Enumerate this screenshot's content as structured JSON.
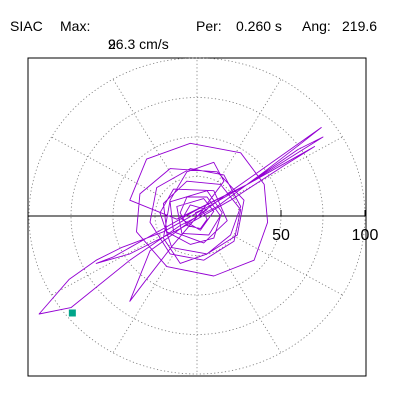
{
  "header": {
    "station": "SIAC",
    "max_label": "Max:",
    "max_value": "96.3 cm/s",
    "max_unit_exp": "2",
    "per_label": "Per:",
    "per_value": "0.260 s",
    "ang_label": "Ang:",
    "ang_value": "219.6"
  },
  "chart_data": {
    "type": "polar",
    "title": "SIAC  Max: 96.3 cm/s2  Per: 0.260 s  Ang: 219.6",
    "radial_ticks": [
      50,
      100
    ],
    "radial_range": [
      0,
      100
    ],
    "ring_spacing": 25,
    "spoke_step_deg": 30,
    "grid": true,
    "series_color": "#9400d3",
    "peak_marker_color": "#00a58a",
    "peak": {
      "r": 96.3,
      "angle": 219.6
    },
    "particle_motion": [
      [
        0,
        0
      ],
      [
        6,
        4
      ],
      [
        -4,
        7
      ],
      [
        -9,
        -2
      ],
      [
        2,
        -9
      ],
      [
        10,
        3
      ],
      [
        4,
        11
      ],
      [
        -12,
        6
      ],
      [
        -9,
        -11
      ],
      [
        7,
        -12
      ],
      [
        15,
        2
      ],
      [
        6,
        16
      ],
      [
        -16,
        9
      ],
      [
        -14,
        -10
      ],
      [
        4,
        -17
      ],
      [
        18,
        -3
      ],
      [
        10,
        16
      ],
      [
        -14,
        17
      ],
      [
        -22,
        2
      ],
      [
        -15,
        -20
      ],
      [
        6,
        -24
      ],
      [
        24,
        -12
      ],
      [
        28,
        10
      ],
      [
        12,
        28
      ],
      [
        -16,
        30
      ],
      [
        -34,
        14
      ],
      [
        -36,
        -10
      ],
      [
        -18,
        -32
      ],
      [
        10,
        -38
      ],
      [
        34,
        -28
      ],
      [
        42,
        -4
      ],
      [
        40,
        20
      ],
      [
        26,
        40
      ],
      [
        -4,
        46
      ],
      [
        -30,
        36
      ],
      [
        -40,
        10
      ],
      [
        -12,
        -2
      ],
      [
        30,
        20
      ],
      [
        60,
        40
      ],
      [
        75,
        50
      ],
      [
        60,
        42
      ],
      [
        30,
        20
      ],
      [
        0,
        4
      ],
      [
        -30,
        -14
      ],
      [
        -50,
        -26
      ],
      [
        -60,
        -30
      ],
      [
        -40,
        -24
      ],
      [
        -10,
        -8
      ],
      [
        20,
        10
      ],
      [
        52,
        32
      ],
      [
        70,
        44
      ],
      [
        55,
        35
      ],
      [
        20,
        14
      ],
      [
        -20,
        -10
      ],
      [
        -45,
        -20
      ],
      [
        -60,
        -28
      ],
      [
        -76,
        -40
      ],
      [
        -94,
        -62
      ],
      [
        -75,
        -58
      ],
      [
        -40,
        -28
      ],
      [
        -10,
        -6
      ],
      [
        12,
        6
      ],
      [
        40,
        28
      ],
      [
        62,
        46
      ],
      [
        74,
        56
      ],
      [
        50,
        38
      ],
      [
        18,
        14
      ],
      [
        -15,
        -12
      ],
      [
        -28,
        -22
      ],
      [
        -40,
        -54
      ],
      [
        -30,
        -40
      ],
      [
        -14,
        -18
      ],
      [
        2,
        2
      ],
      [
        16,
        22
      ],
      [
        10,
        34
      ],
      [
        -6,
        28
      ],
      [
        -16,
        10
      ],
      [
        -20,
        -14
      ],
      [
        -10,
        -30
      ],
      [
        6,
        -24
      ],
      [
        20,
        -12
      ],
      [
        26,
        6
      ],
      [
        16,
        26
      ],
      [
        -4,
        30
      ],
      [
        -24,
        18
      ],
      [
        -28,
        -4
      ],
      [
        -16,
        -24
      ],
      [
        4,
        -28
      ],
      [
        22,
        -16
      ],
      [
        26,
        4
      ],
      [
        14,
        20
      ],
      [
        -6,
        22
      ],
      [
        -20,
        8
      ],
      [
        -18,
        -10
      ],
      [
        -4,
        -18
      ],
      [
        10,
        -14
      ],
      [
        14,
        0
      ],
      [
        6,
        12
      ],
      [
        -6,
        12
      ],
      [
        -10,
        2
      ],
      [
        -6,
        -6
      ],
      [
        2,
        -8
      ],
      [
        6,
        -2
      ],
      [
        3,
        4
      ],
      [
        -1,
        2
      ],
      [
        0,
        0
      ]
    ]
  }
}
